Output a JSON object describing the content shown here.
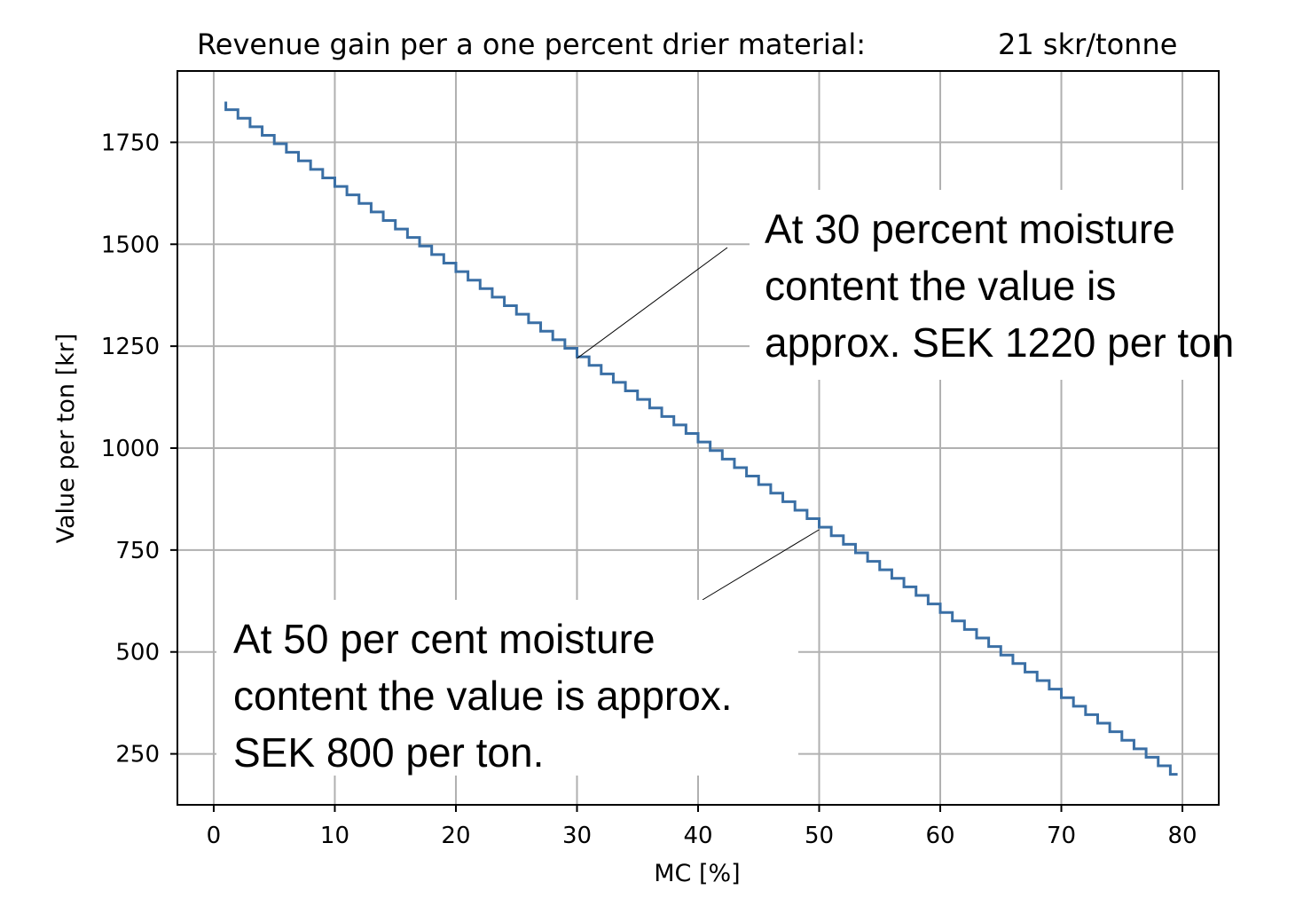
{
  "chart_data": {
    "type": "line",
    "title": "Revenue gain per a one percent drier material:",
    "title_value": "21 skr/tonne",
    "xlabel": "MC [%]",
    "ylabel": "Value per ton [kr]",
    "xlim": [
      -3,
      83
    ],
    "ylim": [
      125,
      1925
    ],
    "xticks": [
      0,
      10,
      20,
      30,
      40,
      50,
      60,
      70,
      80
    ],
    "yticks": [
      250,
      500,
      750,
      1000,
      1250,
      1500,
      1750
    ],
    "grid": true,
    "line_color": "#3a6fa5",
    "step": {
      "x_start": 1,
      "x_end": 79,
      "y_at_x1": 1830,
      "drop_per_percent": 20.9,
      "initial_segment": {
        "x": [
          1,
          1
        ],
        "y": [
          1850,
          1830
        ]
      },
      "final_segment": {
        "x": [
          79,
          79.6
        ],
        "y": [
          204,
          204
        ]
      }
    },
    "annotations": [
      {
        "lines": [
          "At 30 percent moisture",
          "content the value is",
          "approx. SEK 1220 per ton"
        ],
        "point": {
          "x": 30,
          "y": 1220
        }
      },
      {
        "lines": [
          "At 50 per cent moisture",
          "content the value is approx.",
          "SEK 800 per ton."
        ],
        "point": {
          "x": 50,
          "y": 800
        }
      }
    ]
  }
}
